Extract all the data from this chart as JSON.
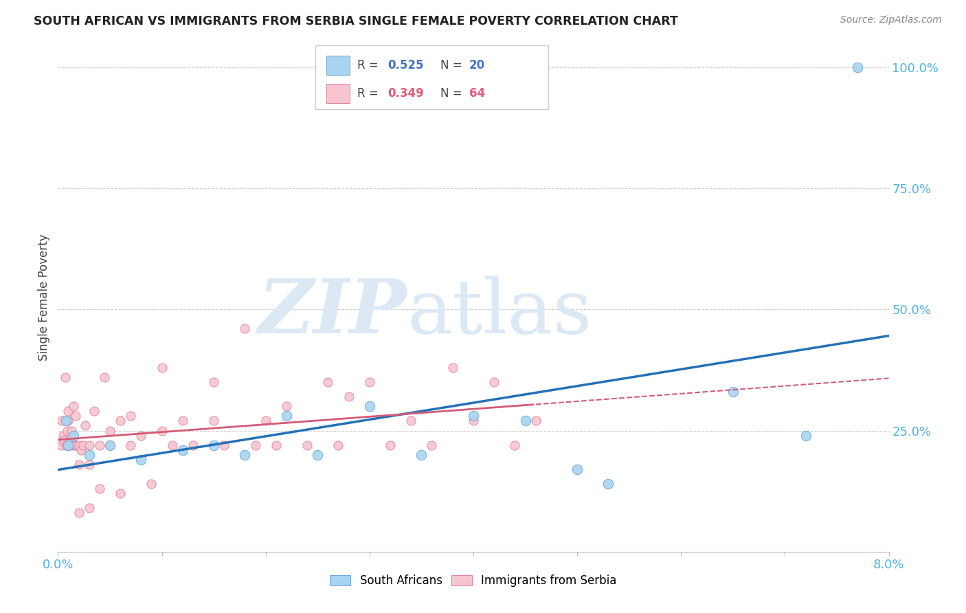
{
  "title": "SOUTH AFRICAN VS IMMIGRANTS FROM SERBIA SINGLE FEMALE POVERTY CORRELATION CHART",
  "source": "Source: ZipAtlas.com",
  "ylabel": "Single Female Poverty",
  "xlim": [
    0.0,
    0.08
  ],
  "ylim": [
    0.0,
    1.05
  ],
  "background_color": "#ffffff",
  "grid_color": "#cccccc",
  "blue_fill": "#a8d4f0",
  "blue_edge": "#5b9bd5",
  "pink_fill": "#f7c5d0",
  "pink_edge": "#e07090",
  "blue_line": "#2471b8",
  "pink_line": "#d45a78",
  "legend_color_R_blue": "#4472c4",
  "legend_color_N_blue": "#4472c4",
  "legend_color_R_pink": "#e05c7a",
  "legend_color_N_pink": "#e05c7a",
  "right_axis_color": "#4db3e6",
  "watermark_color": "#dce9f5",
  "sa_x": [
    0.0008,
    0.001,
    0.0015,
    0.003,
    0.005,
    0.008,
    0.012,
    0.015,
    0.018,
    0.022,
    0.025,
    0.03,
    0.035,
    0.04,
    0.045,
    0.05,
    0.053,
    0.065,
    0.072,
    0.077
  ],
  "sa_y": [
    0.27,
    0.22,
    0.24,
    0.2,
    0.22,
    0.19,
    0.21,
    0.22,
    0.2,
    0.28,
    0.2,
    0.3,
    0.2,
    0.28,
    0.27,
    0.17,
    0.14,
    0.33,
    0.24,
    1.0
  ],
  "serb_x": [
    0.0003,
    0.0004,
    0.0005,
    0.0006,
    0.0007,
    0.0008,
    0.0009,
    0.001,
    0.001,
    0.001,
    0.0012,
    0.0013,
    0.0014,
    0.0015,
    0.0016,
    0.0017,
    0.0018,
    0.002,
    0.002,
    0.002,
    0.0022,
    0.0024,
    0.0026,
    0.003,
    0.003,
    0.003,
    0.0035,
    0.004,
    0.004,
    0.0045,
    0.005,
    0.005,
    0.006,
    0.006,
    0.007,
    0.007,
    0.008,
    0.009,
    0.01,
    0.01,
    0.011,
    0.012,
    0.013,
    0.015,
    0.015,
    0.016,
    0.018,
    0.019,
    0.02,
    0.021,
    0.022,
    0.024,
    0.026,
    0.027,
    0.028,
    0.03,
    0.032,
    0.034,
    0.036,
    0.038,
    0.04,
    0.042,
    0.044,
    0.046
  ],
  "serb_y": [
    0.22,
    0.27,
    0.24,
    0.23,
    0.36,
    0.22,
    0.25,
    0.22,
    0.27,
    0.29,
    0.22,
    0.25,
    0.22,
    0.3,
    0.22,
    0.28,
    0.22,
    0.08,
    0.18,
    0.22,
    0.21,
    0.22,
    0.26,
    0.09,
    0.18,
    0.22,
    0.29,
    0.13,
    0.22,
    0.36,
    0.22,
    0.25,
    0.12,
    0.27,
    0.22,
    0.28,
    0.24,
    0.14,
    0.25,
    0.38,
    0.22,
    0.27,
    0.22,
    0.27,
    0.35,
    0.22,
    0.46,
    0.22,
    0.27,
    0.22,
    0.3,
    0.22,
    0.35,
    0.22,
    0.32,
    0.35,
    0.22,
    0.27,
    0.22,
    0.38,
    0.27,
    0.35,
    0.22,
    0.27
  ]
}
